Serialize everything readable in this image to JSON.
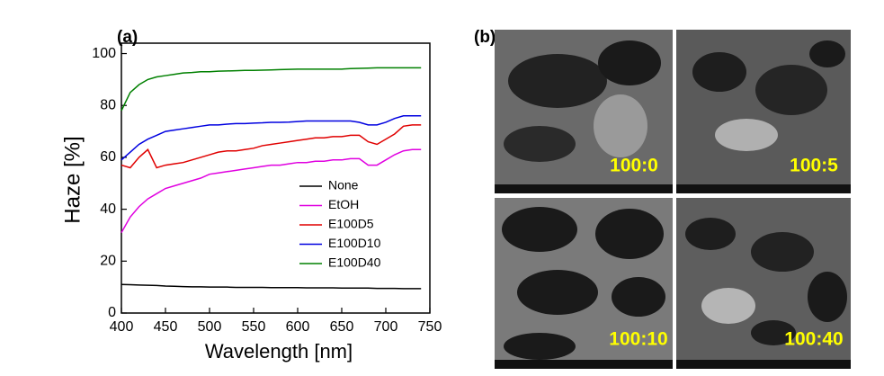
{
  "chart_data": {
    "type": "line",
    "title": "(a)",
    "xlabel": "Wavelength [nm]",
    "ylabel": "Haze [%]",
    "x": [
      400,
      410,
      420,
      430,
      440,
      450,
      460,
      470,
      480,
      490,
      500,
      510,
      520,
      530,
      540,
      550,
      560,
      570,
      580,
      590,
      600,
      610,
      620,
      630,
      640,
      650,
      660,
      670,
      680,
      690,
      700,
      710,
      720,
      730,
      740
    ],
    "series": [
      {
        "name": "None",
        "color": "#000000",
        "values": [
          11,
          10.9,
          10.8,
          10.7,
          10.6,
          10.4,
          10.3,
          10.2,
          10.1,
          10.1,
          10,
          10,
          10,
          9.9,
          9.9,
          9.9,
          9.9,
          9.8,
          9.8,
          9.8,
          9.8,
          9.7,
          9.7,
          9.7,
          9.7,
          9.6,
          9.6,
          9.6,
          9.6,
          9.5,
          9.5,
          9.5,
          9.4,
          9.4,
          9.4
        ]
      },
      {
        "name": "EtOH",
        "color": "#e000e0",
        "values": [
          31,
          37,
          41,
          44,
          46,
          48,
          49,
          50,
          51,
          52,
          53.5,
          54,
          54.5,
          55,
          55.5,
          56,
          56.5,
          57,
          57,
          57.5,
          58,
          58,
          58.5,
          58.5,
          59,
          59,
          59.5,
          59.5,
          57,
          57,
          59,
          61,
          62.5,
          63,
          63
        ]
      },
      {
        "name": "E100D5",
        "color": "#e00000",
        "values": [
          57,
          56,
          60,
          63,
          56,
          57,
          57.5,
          58,
          59,
          60,
          61,
          62,
          62.5,
          62.5,
          63,
          63.5,
          64.5,
          65,
          65.5,
          66,
          66.5,
          67,
          67.5,
          67.5,
          68,
          68,
          68.5,
          68.5,
          66,
          65,
          67,
          69,
          72,
          72.5,
          72.5
        ]
      },
      {
        "name": "E100D10",
        "color": "#0000e0",
        "values": [
          59,
          62,
          65,
          67,
          68.5,
          70,
          70.5,
          71,
          71.5,
          72,
          72.5,
          72.5,
          72.8,
          73,
          73,
          73.2,
          73.3,
          73.5,
          73.5,
          73.6,
          73.8,
          74,
          74,
          74,
          74,
          74,
          74,
          73.5,
          72.5,
          72.5,
          73.5,
          75,
          76,
          76,
          76
        ]
      },
      {
        "name": "E100D40",
        "color": "#008000",
        "values": [
          78,
          85,
          88,
          90,
          91,
          91.5,
          92,
          92.5,
          92.7,
          93,
          93,
          93.2,
          93.3,
          93.4,
          93.5,
          93.5,
          93.6,
          93.7,
          93.8,
          93.9,
          94,
          94,
          94,
          94,
          94,
          94,
          94.2,
          94.3,
          94.4,
          94.5,
          94.5,
          94.5,
          94.5,
          94.5,
          94.5
        ]
      }
    ],
    "xlim": [
      400,
      750
    ],
    "xticks": [
      400,
      450,
      500,
      550,
      600,
      650,
      700,
      750
    ],
    "ylim": [
      0,
      104
    ],
    "yticks": [
      0,
      20,
      40,
      60,
      80,
      100
    ],
    "legend": "center-right"
  },
  "images_panel": {
    "label": "(b)",
    "images": [
      {
        "label": "100:0"
      },
      {
        "label": "100:5"
      },
      {
        "label": "100:10"
      },
      {
        "label": "100:40"
      }
    ]
  }
}
